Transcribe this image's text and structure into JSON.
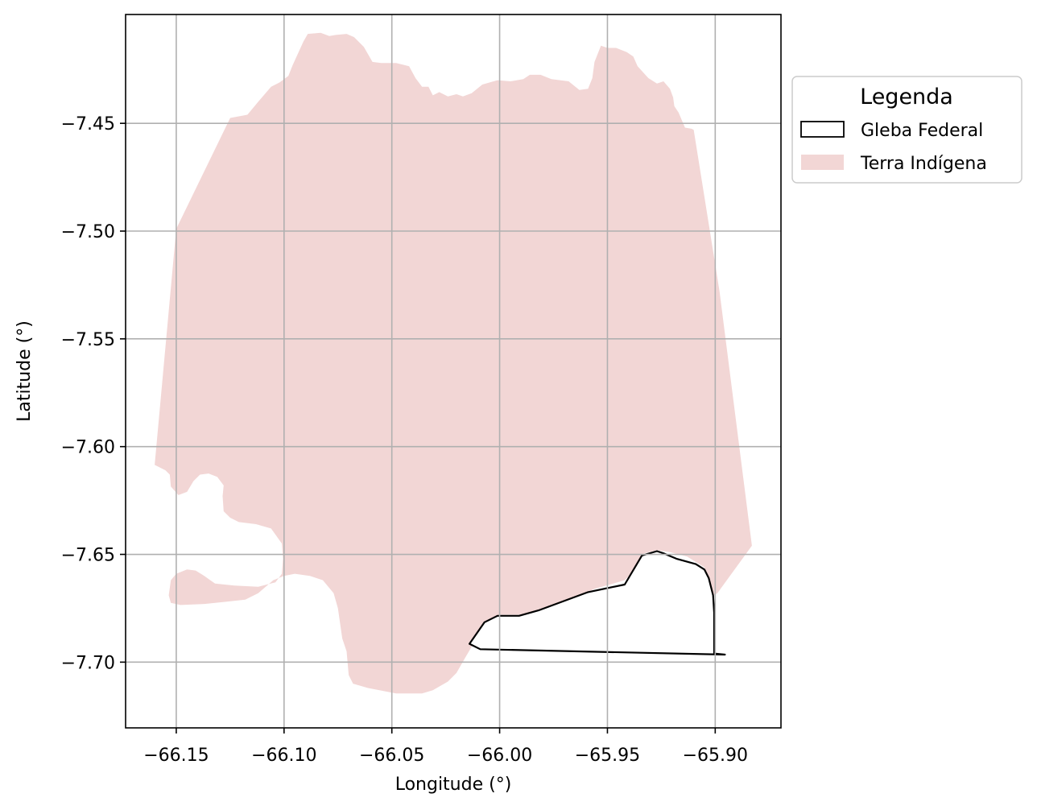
{
  "chart_data": {
    "type": "map",
    "xlabel": "Longitude (°)",
    "ylabel": "Latitude (°)",
    "xlim": [
      -66.1735,
      -65.8695
    ],
    "ylim": [
      -7.7305,
      -7.3995
    ],
    "x_ticks": [
      -66.15,
      -66.1,
      -66.05,
      -66.0,
      -65.95,
      -65.9
    ],
    "x_tick_labels": [
      "−66.15",
      "−66.10",
      "−66.05",
      "−66.00",
      "−65.95",
      "−65.90"
    ],
    "y_ticks": [
      -7.45,
      -7.5,
      -7.55,
      -7.6,
      -7.65,
      -7.7
    ],
    "y_tick_labels": [
      "−7.45",
      "−7.50",
      "−7.55",
      "−7.60",
      "−7.65",
      "−7.70"
    ],
    "grid": true,
    "grid_color": "#b0b0b0",
    "legend": {
      "title": "Legenda",
      "placement": "outside-top-right",
      "entries": [
        {
          "label": "Gleba Federal",
          "style": "outline",
          "edge_color": "#000000",
          "face_color": "none"
        },
        {
          "label": "Terra Indígena",
          "style": "fill",
          "face_color": "#f2d6d5"
        }
      ]
    },
    "layers": [
      {
        "name": "Terra Indígena",
        "face_color": "#f2d6d5",
        "edge_color": "none",
        "coordinates": [
          [
            -66.16,
            -7.6085
          ],
          [
            -66.15,
            -7.499
          ],
          [
            -66.125,
            -7.4475
          ],
          [
            -66.117,
            -7.446
          ],
          [
            -66.112,
            -7.44
          ],
          [
            -66.106,
            -7.433
          ],
          [
            -66.102,
            -7.431
          ],
          [
            -66.098,
            -7.428
          ],
          [
            -66.096,
            -7.423
          ],
          [
            -66.091,
            -7.412
          ],
          [
            -66.089,
            -7.4085
          ],
          [
            -66.083,
            -7.408
          ],
          [
            -66.079,
            -7.4095
          ],
          [
            -66.076,
            -7.409
          ],
          [
            -66.071,
            -7.4085
          ],
          [
            -66.0675,
            -7.41
          ],
          [
            -66.063,
            -7.4145
          ],
          [
            -66.059,
            -7.4215
          ],
          [
            -66.055,
            -7.422
          ],
          [
            -66.048,
            -7.422
          ],
          [
            -66.042,
            -7.4235
          ],
          [
            -66.039,
            -7.429
          ],
          [
            -66.036,
            -7.433
          ],
          [
            -66.033,
            -7.433
          ],
          [
            -66.031,
            -7.437
          ],
          [
            -66.028,
            -7.4355
          ],
          [
            -66.024,
            -7.4375
          ],
          [
            -66.02,
            -7.4365
          ],
          [
            -66.017,
            -7.4375
          ],
          [
            -66.013,
            -7.436
          ],
          [
            -66.008,
            -7.432
          ],
          [
            -66.001,
            -7.43
          ],
          [
            -65.995,
            -7.4305
          ],
          [
            -65.989,
            -7.4295
          ],
          [
            -65.986,
            -7.4275
          ],
          [
            -65.981,
            -7.4275
          ],
          [
            -65.976,
            -7.4295
          ],
          [
            -65.968,
            -7.4305
          ],
          [
            -65.963,
            -7.4345
          ],
          [
            -65.959,
            -7.434
          ],
          [
            -65.957,
            -7.429
          ],
          [
            -65.956,
            -7.4215
          ],
          [
            -65.953,
            -7.414
          ],
          [
            -65.95,
            -7.415
          ],
          [
            -65.946,
            -7.415
          ],
          [
            -65.941,
            -7.417
          ],
          [
            -65.938,
            -7.419
          ],
          [
            -65.936,
            -7.4235
          ],
          [
            -65.931,
            -7.429
          ],
          [
            -65.927,
            -7.4315
          ],
          [
            -65.924,
            -7.4305
          ],
          [
            -65.921,
            -7.434
          ],
          [
            -65.9195,
            -7.438
          ],
          [
            -65.919,
            -7.442
          ],
          [
            -65.917,
            -7.445
          ],
          [
            -65.914,
            -7.452
          ],
          [
            -65.911,
            -7.4525
          ],
          [
            -65.91,
            -7.453
          ],
          [
            -65.898,
            -7.528
          ],
          [
            -65.883,
            -7.646
          ],
          [
            -65.899,
            -7.668
          ],
          [
            -65.901,
            -7.669
          ],
          [
            -65.905,
            -7.656
          ],
          [
            -65.913,
            -7.651
          ],
          [
            -65.921,
            -7.649
          ],
          [
            -65.927,
            -7.648
          ],
          [
            -65.933,
            -7.6495
          ],
          [
            -65.938,
            -7.658
          ],
          [
            -65.942,
            -7.662
          ],
          [
            -65.956,
            -7.666
          ],
          [
            -65.979,
            -7.676
          ],
          [
            -65.991,
            -7.678
          ],
          [
            -66.0,
            -7.678
          ],
          [
            -66.006,
            -7.681
          ],
          [
            -66.016,
            -7.698
          ],
          [
            -66.02,
            -7.705
          ],
          [
            -66.024,
            -7.709
          ],
          [
            -66.031,
            -7.713
          ],
          [
            -66.036,
            -7.7145
          ],
          [
            -66.048,
            -7.7145
          ],
          [
            -66.061,
            -7.712
          ],
          [
            -66.068,
            -7.71
          ],
          [
            -66.07,
            -7.706
          ],
          [
            -66.071,
            -7.695
          ],
          [
            -66.073,
            -7.689
          ],
          [
            -66.075,
            -7.675
          ],
          [
            -66.077,
            -7.668
          ],
          [
            -66.082,
            -7.662
          ],
          [
            -66.088,
            -7.66
          ],
          [
            -66.095,
            -7.659
          ],
          [
            -66.1,
            -7.66
          ],
          [
            -66.105,
            -7.662
          ],
          [
            -66.112,
            -7.668
          ],
          [
            -66.118,
            -7.671
          ],
          [
            -66.127,
            -7.672
          ],
          [
            -66.137,
            -7.673
          ],
          [
            -66.148,
            -7.6735
          ],
          [
            -66.1525,
            -7.6725
          ],
          [
            -66.1535,
            -7.669
          ],
          [
            -66.1525,
            -7.662
          ],
          [
            -66.15,
            -7.659
          ],
          [
            -66.145,
            -7.657
          ],
          [
            -66.141,
            -7.6575
          ],
          [
            -66.137,
            -7.66
          ],
          [
            -66.132,
            -7.6635
          ],
          [
            -66.123,
            -7.6645
          ],
          [
            -66.112,
            -7.665
          ],
          [
            -66.104,
            -7.663
          ],
          [
            -66.101,
            -7.659
          ],
          [
            -66.1005,
            -7.652
          ],
          [
            -66.101,
            -7.645
          ],
          [
            -66.106,
            -7.638
          ],
          [
            -66.113,
            -7.636
          ],
          [
            -66.121,
            -7.635
          ],
          [
            -66.125,
            -7.633
          ],
          [
            -66.128,
            -7.63
          ],
          [
            -66.1285,
            -7.623
          ],
          [
            -66.128,
            -7.618
          ],
          [
            -66.131,
            -7.614
          ],
          [
            -66.135,
            -7.6125
          ],
          [
            -66.139,
            -7.613
          ],
          [
            -66.142,
            -7.616
          ],
          [
            -66.145,
            -7.621
          ],
          [
            -66.149,
            -7.6225
          ],
          [
            -66.1525,
            -7.6185
          ],
          [
            -66.153,
            -7.613
          ],
          [
            -66.155,
            -7.611
          ],
          [
            -66.16,
            -7.6085
          ]
        ]
      },
      {
        "name": "Gleba Federal",
        "face_color": "#ffffff",
        "edge_color": "#000000",
        "coordinates": [
          [
            -66.014,
            -7.6915
          ],
          [
            -66.007,
            -7.6815
          ],
          [
            -66.001,
            -7.6785
          ],
          [
            -65.991,
            -7.6785
          ],
          [
            -65.982,
            -7.676
          ],
          [
            -65.959,
            -7.6675
          ],
          [
            -65.942,
            -7.664
          ],
          [
            -65.934,
            -7.6505
          ],
          [
            -65.927,
            -7.6485
          ],
          [
            -65.924,
            -7.6495
          ],
          [
            -65.918,
            -7.652
          ],
          [
            -65.909,
            -7.6545
          ],
          [
            -65.905,
            -7.657
          ],
          [
            -65.903,
            -7.661
          ],
          [
            -65.901,
            -7.669
          ],
          [
            -65.9005,
            -7.677
          ],
          [
            -65.9005,
            -7.696
          ],
          [
            -65.8955,
            -7.6965
          ],
          [
            -66.009,
            -7.694
          ],
          [
            -66.014,
            -7.6915
          ]
        ]
      }
    ]
  }
}
